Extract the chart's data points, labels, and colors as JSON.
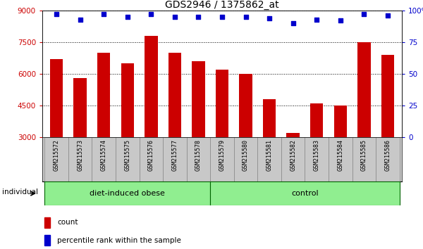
{
  "title": "GDS2946 / 1375862_at",
  "samples": [
    "GSM215572",
    "GSM215573",
    "GSM215574",
    "GSM215575",
    "GSM215576",
    "GSM215577",
    "GSM215578",
    "GSM215579",
    "GSM215580",
    "GSM215581",
    "GSM215582",
    "GSM215583",
    "GSM215584",
    "GSM215585",
    "GSM215586"
  ],
  "counts": [
    6700,
    5800,
    7000,
    6500,
    7800,
    7000,
    6600,
    6200,
    6000,
    4800,
    3200,
    4600,
    4500,
    7500,
    6900
  ],
  "percentile_ranks": [
    97,
    93,
    97,
    95,
    97,
    95,
    95,
    95,
    95,
    94,
    90,
    93,
    92,
    97,
    96
  ],
  "bar_color": "#cc0000",
  "dot_color": "#0000cc",
  "ylim_left": [
    3000,
    9000
  ],
  "ylim_right": [
    0,
    100
  ],
  "yticks_left": [
    3000,
    4500,
    6000,
    7500,
    9000
  ],
  "yticks_right": [
    0,
    25,
    50,
    75,
    100
  ],
  "group1_label": "diet-induced obese",
  "group1_count": 7,
  "group2_label": "control",
  "group2_count": 8,
  "group_color": "#90ee90",
  "individual_label": "individual",
  "legend_count_label": "count",
  "legend_pct_label": "percentile rank within the sample",
  "tick_bg_color": "#c8c8c8",
  "plot_bg": "#ffffff",
  "group_border_color": "#006400"
}
